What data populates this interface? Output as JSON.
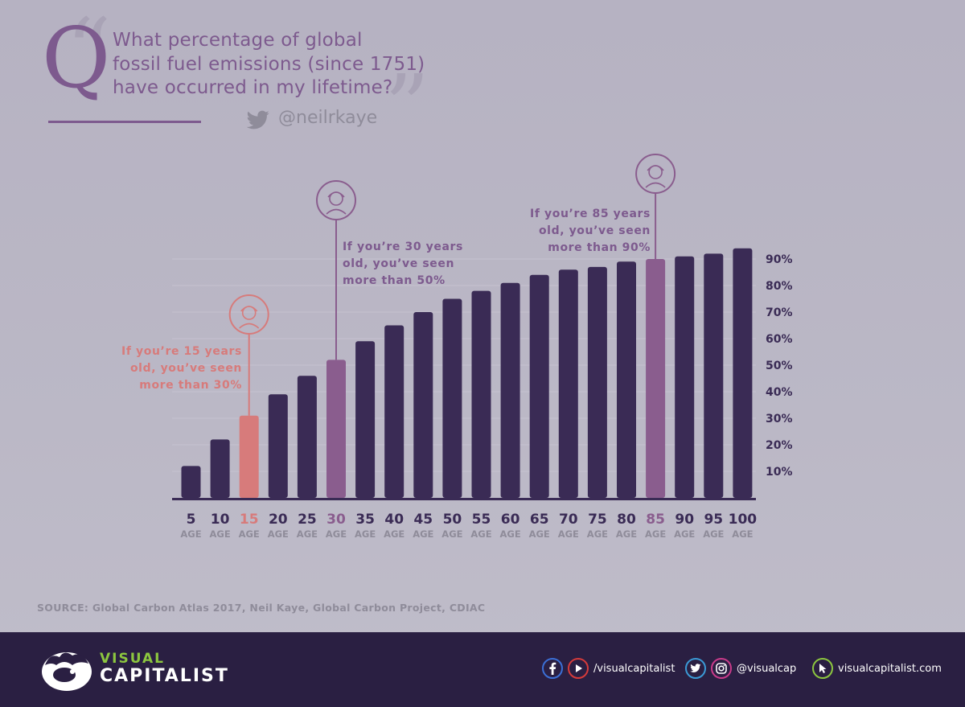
{
  "header": {
    "q_letter": "Q",
    "question_lines": [
      "What percentage of global",
      "fossil fuel emissions (since 1751)",
      "have occurred in my lifetime?"
    ],
    "handle": "@neilrkaye"
  },
  "chart_data": {
    "type": "bar",
    "categories": [
      "5",
      "10",
      "15",
      "20",
      "25",
      "30",
      "35",
      "40",
      "45",
      "50",
      "55",
      "60",
      "65",
      "70",
      "75",
      "80",
      "85",
      "90",
      "95",
      "100"
    ],
    "category_sublabel": "AGE",
    "values": [
      12,
      22,
      31,
      39,
      46,
      52,
      59,
      65,
      70,
      75,
      78,
      81,
      84,
      86,
      87,
      89,
      90,
      91,
      92,
      94
    ],
    "ylim": [
      0,
      100
    ],
    "y_ticks": [
      "10%",
      "20%",
      "30%",
      "40%",
      "50%",
      "60%",
      "70%",
      "80%",
      "90%"
    ],
    "y_tick_values": [
      10,
      20,
      30,
      40,
      50,
      60,
      70,
      80,
      90
    ],
    "highlights": {
      "15": "#d77b7b",
      "30": "#8a5d8e",
      "85": "#8a5d8e"
    },
    "bar_color": "#3a2b55",
    "label_color": "#3a2b55",
    "sublabel_color": "#8f8c9a",
    "annotations": {
      "age15": "If you’re 15 years\nold, you’ve seen\nmore than 30%",
      "age30": "If you’re 30 years\nold, you’ve seen\nmore than 50%",
      "age85": "If you’re 85 years\nold, you’ve seen\nmore than 90%"
    }
  },
  "source": "SOURCE: Global Carbon Atlas 2017, Neil Kaye, Global Carbon Project, CDIAC",
  "footer": {
    "brand_top": "VISUAL",
    "brand_bottom": "CAPITALIST",
    "social_1": "/visualcapitalist",
    "social_2": "@visualcap",
    "social_3": "visualcapitalist.com",
    "icons": [
      "facebook-icon",
      "youtube-icon",
      "twitter-icon",
      "instagram-icon",
      "cursor-icon"
    ]
  }
}
